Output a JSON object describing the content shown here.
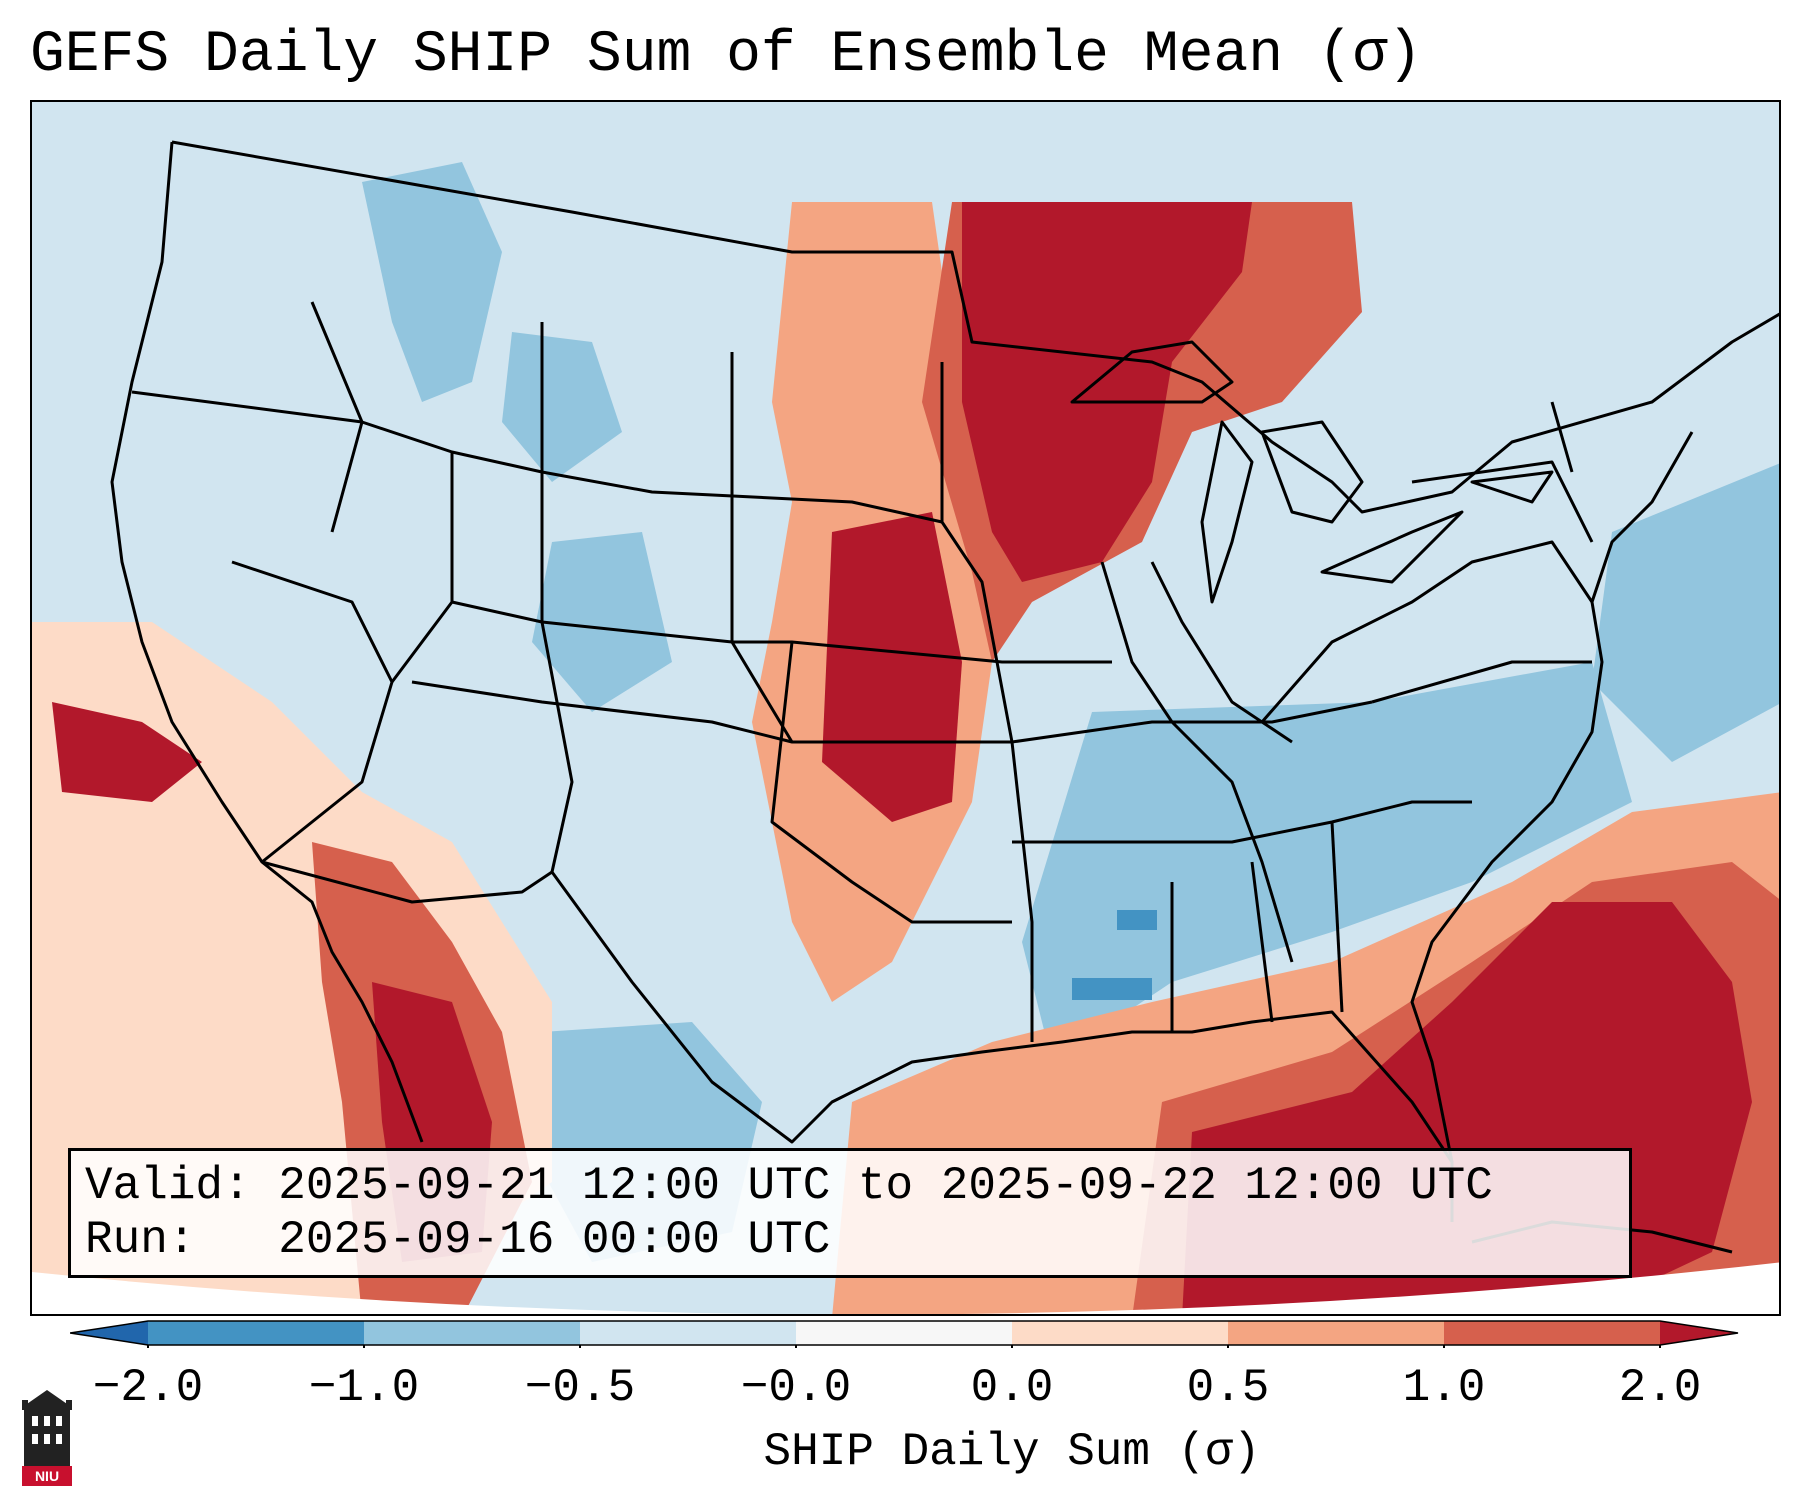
{
  "title": "GEFS Daily SHIP Sum of Ensemble Mean (σ)",
  "info": {
    "valid_label": "Valid:",
    "valid_value": "2025-09-21 12:00 UTC to 2025-09-22 12:00 UTC",
    "run_label": "Run:",
    "run_value": "2025-09-16 00:00 UTC"
  },
  "map": {
    "region": "Continental United States",
    "field": "GEFS ensemble mean SHIP daily sum anomaly"
  },
  "colorbar": {
    "label": "SHIP Daily Sum (σ)",
    "ticks": [
      "−2.0",
      "−1.0",
      "−0.5",
      "−0.0",
      "0.0",
      "0.5",
      "1.0",
      "2.0"
    ],
    "colors": {
      "below_min": "#2166ac",
      "c1": "#4393c3",
      "c2": "#92c5de",
      "c3": "#d1e5f0",
      "c4": "#f7f7f7",
      "c5": "#fddbc7",
      "c6": "#f4a582",
      "c7": "#d6604d",
      "above_max": "#b2182b"
    }
  },
  "logo": {
    "text": "NIU"
  }
}
